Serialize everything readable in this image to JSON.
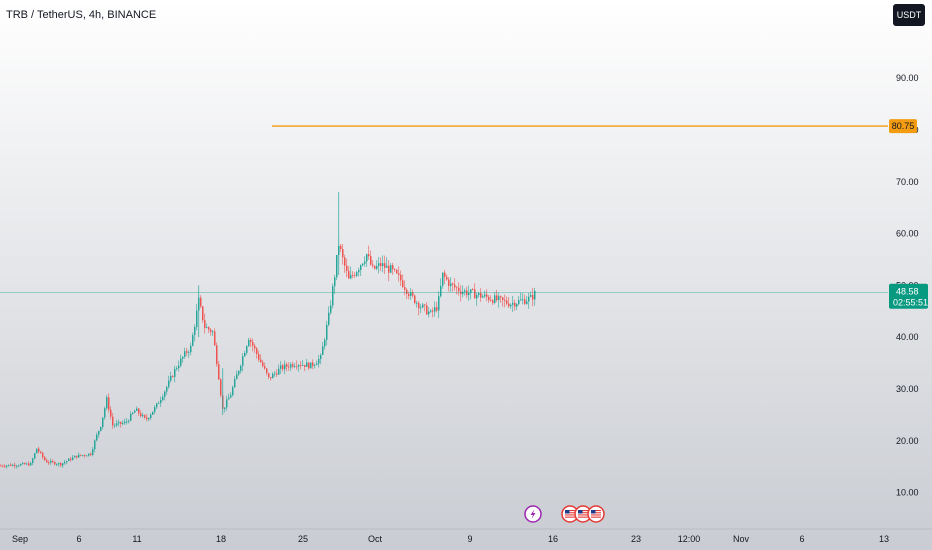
{
  "header": {
    "symbol_title": "TRB / TetherUS, 4h, BINANCE",
    "currency": "USDT"
  },
  "colors": {
    "up": "#26a69a",
    "down": "#ef5350",
    "level_line": "#f39c12",
    "price_tag": "#089981"
  },
  "chart_data": {
    "type": "candlestick",
    "title": "",
    "ylim": [
      2,
      102
    ],
    "y_ticks": [
      "10.00",
      "20.00",
      "30.00",
      "40.00",
      "50.00",
      "60.00",
      "70.00",
      "80.00",
      "90.00"
    ],
    "x_labels": [
      "Sep",
      "6",
      "11",
      "18",
      "25",
      "Oct",
      "9",
      "16",
      "23",
      "12:00",
      "Nov",
      "6",
      "13"
    ],
    "keypoints": [
      {
        "x": 0,
        "y": 15.2
      },
      {
        "x": 30,
        "y": 15.5
      },
      {
        "x": 36,
        "y": 18.5
      },
      {
        "x": 45,
        "y": 16
      },
      {
        "x": 60,
        "y": 15.5
      },
      {
        "x": 75,
        "y": 17
      },
      {
        "x": 90,
        "y": 17.5
      },
      {
        "x": 95,
        "y": 20.5
      },
      {
        "x": 100,
        "y": 23
      },
      {
        "x": 106,
        "y": 28
      },
      {
        "x": 112,
        "y": 23
      },
      {
        "x": 125,
        "y": 23.5
      },
      {
        "x": 135,
        "y": 26
      },
      {
        "x": 145,
        "y": 24
      },
      {
        "x": 155,
        "y": 26.5
      },
      {
        "x": 165,
        "y": 30
      },
      {
        "x": 175,
        "y": 34
      },
      {
        "x": 185,
        "y": 37
      },
      {
        "x": 190,
        "y": 38
      },
      {
        "x": 198,
        "y": 47
      },
      {
        "x": 204,
        "y": 42
      },
      {
        "x": 212,
        "y": 41
      },
      {
        "x": 217,
        "y": 34
      },
      {
        "x": 222,
        "y": 26
      },
      {
        "x": 230,
        "y": 29
      },
      {
        "x": 240,
        "y": 35
      },
      {
        "x": 248,
        "y": 40
      },
      {
        "x": 258,
        "y": 36
      },
      {
        "x": 268,
        "y": 32
      },
      {
        "x": 280,
        "y": 34
      },
      {
        "x": 295,
        "y": 35
      },
      {
        "x": 310,
        "y": 34.5
      },
      {
        "x": 320,
        "y": 36
      },
      {
        "x": 328,
        "y": 44
      },
      {
        "x": 334,
        "y": 52
      },
      {
        "x": 338,
        "y": 58
      },
      {
        "x": 342,
        "y": 55
      },
      {
        "x": 348,
        "y": 51
      },
      {
        "x": 356,
        "y": 53
      },
      {
        "x": 366,
        "y": 56
      },
      {
        "x": 372,
        "y": 53
      },
      {
        "x": 380,
        "y": 54
      },
      {
        "x": 390,
        "y": 53
      },
      {
        "x": 400,
        "y": 51
      },
      {
        "x": 410,
        "y": 48
      },
      {
        "x": 420,
        "y": 46
      },
      {
        "x": 430,
        "y": 44.5
      },
      {
        "x": 437,
        "y": 46
      },
      {
        "x": 442,
        "y": 52
      },
      {
        "x": 450,
        "y": 50
      },
      {
        "x": 460,
        "y": 49
      },
      {
        "x": 470,
        "y": 48.5
      },
      {
        "x": 480,
        "y": 48
      },
      {
        "x": 490,
        "y": 47.5
      },
      {
        "x": 500,
        "y": 47
      },
      {
        "x": 510,
        "y": 46.5
      },
      {
        "x": 520,
        "y": 47
      },
      {
        "x": 530,
        "y": 47.5
      },
      {
        "x": 535,
        "y": 48.6
      }
    ],
    "last_price": 48.58,
    "last_price_label": "48.58",
    "countdown": "02:55:51",
    "level_line": {
      "value": 80.75,
      "label": "80.75"
    },
    "events": [
      "lightning",
      "flag-us",
      "flag-us",
      "flag-us"
    ],
    "grid": false,
    "legend": "none"
  }
}
